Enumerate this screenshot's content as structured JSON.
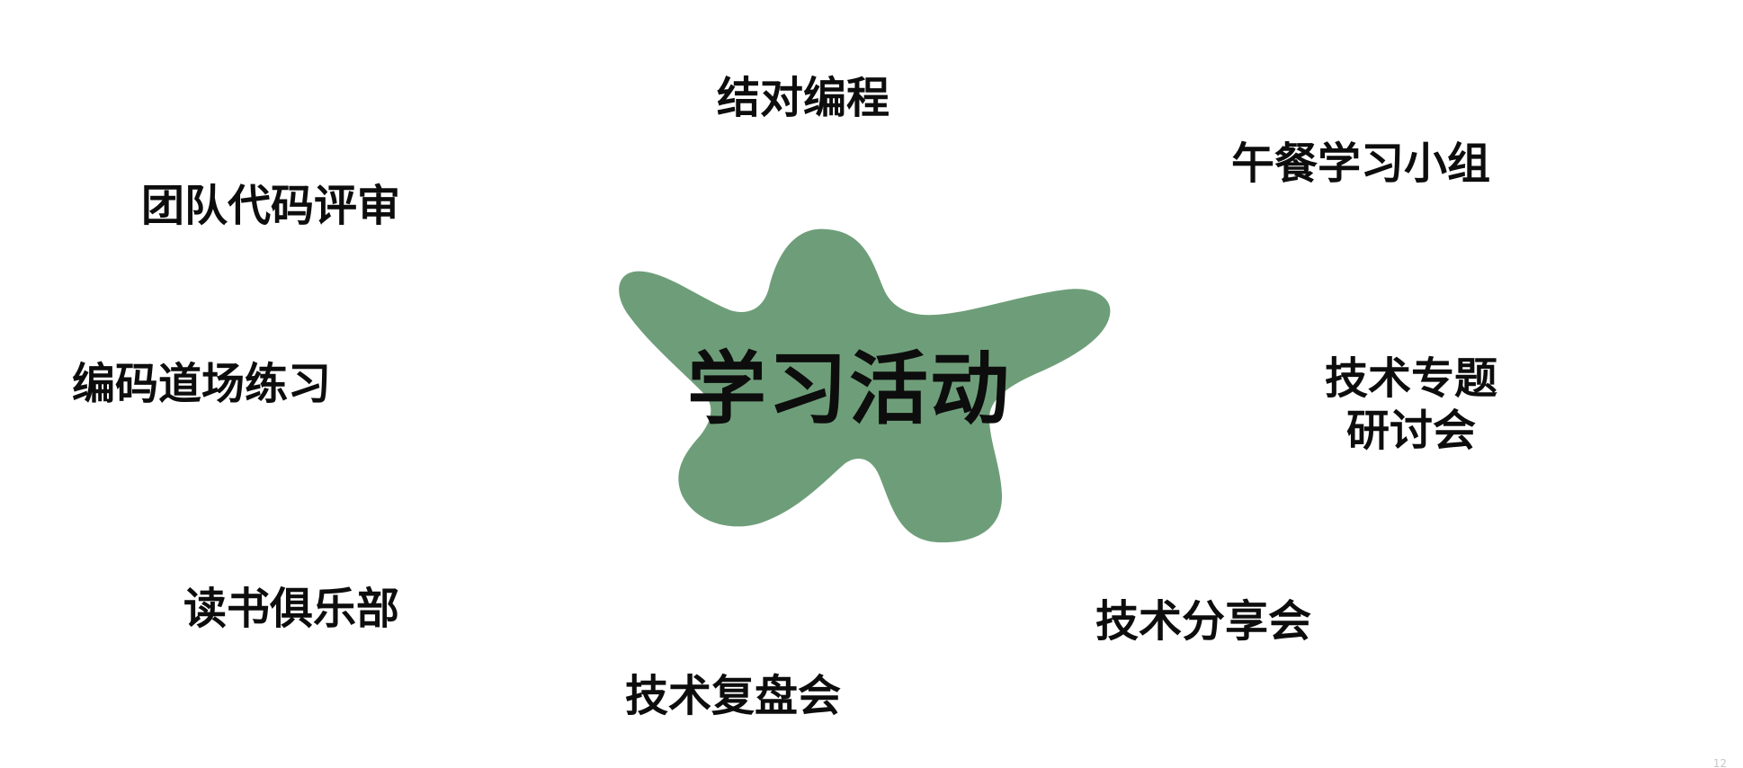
{
  "diagram": {
    "center": {
      "label": "学习活动",
      "color": "#6e9e79"
    },
    "branches": [
      {
        "id": "pair-programming",
        "label": "结对编程"
      },
      {
        "id": "lunch-study-group",
        "label": "午餐学习小组"
      },
      {
        "id": "team-code-review",
        "label": "团队代码评审"
      },
      {
        "id": "coding-dojo",
        "label": "编码道场练习"
      },
      {
        "id": "tech-seminar",
        "lines": [
          "技术专题",
          "研讨会"
        ]
      },
      {
        "id": "book-club",
        "label": "读书俱乐部"
      },
      {
        "id": "tech-sharing",
        "label": "技术分享会"
      },
      {
        "id": "tech-retrospective",
        "label": "技术复盘会"
      }
    ]
  },
  "footer": {
    "page_number": "12"
  }
}
